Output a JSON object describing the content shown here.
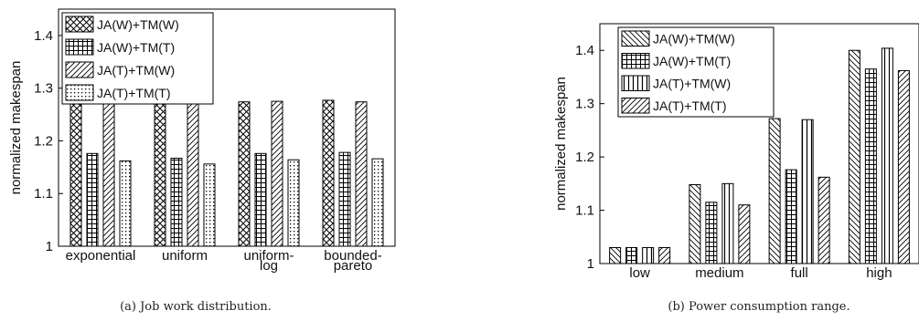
{
  "chart_data": [
    {
      "type": "bar",
      "caption": "(a) Job work distribution.",
      "ylabel": "normalized makespan",
      "ylim": [
        1,
        1.45
      ],
      "yticks": [
        "1",
        "1.1",
        "1.2",
        "1.3",
        "1.4"
      ],
      "categories": [
        [
          "exponential"
        ],
        [
          "uniform"
        ],
        [
          "uniform-",
          "log"
        ],
        [
          "bounded-",
          "pareto"
        ]
      ],
      "legend_position": "top-left",
      "series": [
        {
          "name": "JA(W)+TM(W)",
          "pattern": "crosshatch",
          "values": [
            1.272,
            1.272,
            1.274,
            1.277
          ]
        },
        {
          "name": "JA(W)+TM(T)",
          "pattern": "grid",
          "values": [
            1.176,
            1.167,
            1.176,
            1.178
          ]
        },
        {
          "name": "JA(T)+TM(W)",
          "pattern": "diagonal",
          "values": [
            1.27,
            1.27,
            1.275,
            1.274
          ]
        },
        {
          "name": "JA(T)+TM(T)",
          "pattern": "dots",
          "values": [
            1.162,
            1.156,
            1.164,
            1.166
          ]
        }
      ]
    },
    {
      "type": "bar",
      "caption": "(b) Power consumption range.",
      "ylabel": "normalized makespan",
      "ylim": [
        1,
        1.45
      ],
      "yticks": [
        "1",
        "1.1",
        "1.2",
        "1.3",
        "1.4"
      ],
      "categories": [
        [
          "low"
        ],
        [
          "medium"
        ],
        [
          "full"
        ],
        [
          "high"
        ]
      ],
      "legend_position": "top-left",
      "series": [
        {
          "name": "JA(W)+TM(W)",
          "pattern": "backdiagonal",
          "values": [
            1.03,
            1.148,
            1.272,
            1.4
          ]
        },
        {
          "name": "JA(W)+TM(T)",
          "pattern": "grid",
          "values": [
            1.03,
            1.115,
            1.176,
            1.365
          ]
        },
        {
          "name": "JA(T)+TM(W)",
          "pattern": "vertical",
          "values": [
            1.03,
            1.15,
            1.27,
            1.404
          ]
        },
        {
          "name": "JA(T)+TM(T)",
          "pattern": "diagonal",
          "values": [
            1.03,
            1.11,
            1.162,
            1.362
          ]
        }
      ]
    }
  ]
}
